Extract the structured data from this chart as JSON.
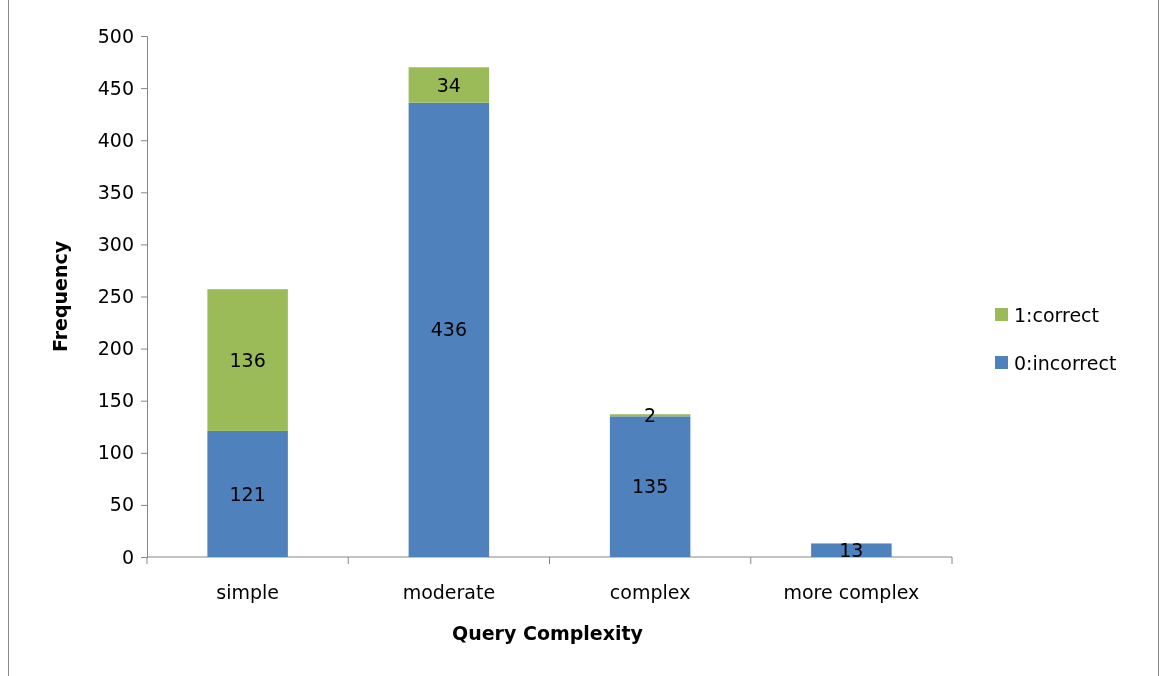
{
  "chart_data": {
    "type": "bar",
    "stacked": true,
    "xlabel": "Query Complexity",
    "ylabel": "Frequency",
    "categories": [
      "simple",
      "moderate",
      "complex",
      "more complex"
    ],
    "series": [
      {
        "name": "0:incorrect",
        "color": "#4f81bd",
        "values": [
          121,
          436,
          135,
          13
        ]
      },
      {
        "name": "1:correct",
        "color": "#9bbb59",
        "values": [
          136,
          34,
          2,
          null
        ]
      }
    ],
    "ylim": [
      0,
      500
    ],
    "yticks": [
      0,
      50,
      100,
      150,
      200,
      250,
      300,
      350,
      400,
      450,
      500
    ],
    "data_labels": true,
    "legend": "right",
    "grid": false
  }
}
